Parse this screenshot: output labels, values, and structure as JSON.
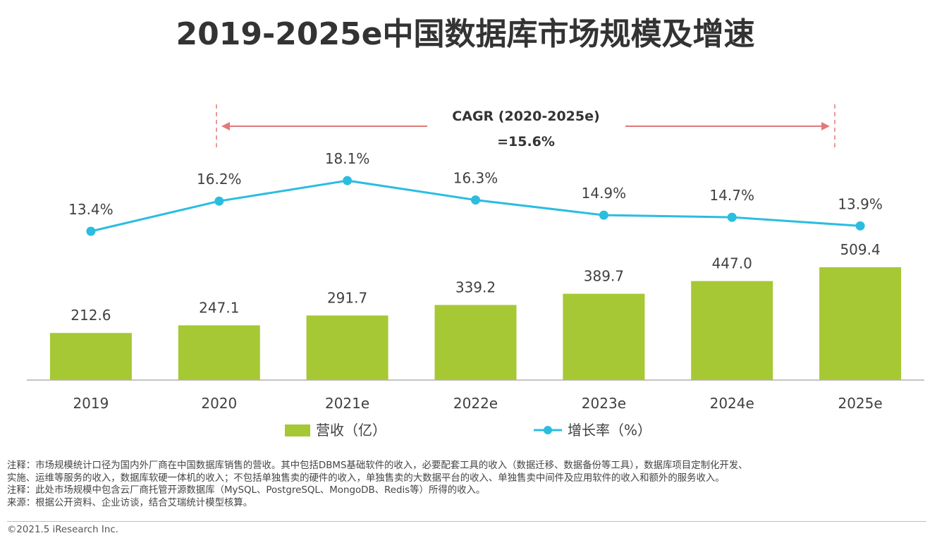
{
  "chart_data": {
    "type": "bar",
    "title": "2019-2025e中国数据库市场规模及增速",
    "categories": [
      "2019",
      "2020",
      "2021e",
      "2022e",
      "2023e",
      "2024e",
      "2025e"
    ],
    "series": [
      {
        "name": "营收（亿）",
        "type": "bar",
        "color": "#a6c834",
        "values": [
          212.6,
          247.1,
          291.7,
          339.2,
          389.7,
          447.0,
          509.4
        ],
        "labels": [
          "212.6",
          "247.1",
          "291.7",
          "339.2",
          "389.7",
          "447.0",
          "509.4"
        ]
      },
      {
        "name": "增长率（%）",
        "type": "line",
        "color": "#2bbde0",
        "values": [
          13.4,
          16.2,
          18.1,
          16.3,
          14.9,
          14.7,
          13.9
        ],
        "labels": [
          "13.4%",
          "16.2%",
          "18.1%",
          "16.3%",
          "14.9%",
          "14.7%",
          "13.9%"
        ]
      }
    ],
    "annotation": {
      "line1": "CAGR (2020-2025e)",
      "line2": "=15.6%",
      "from": "2020",
      "to": "2025e",
      "color": "#e07a7a"
    },
    "legend_position": "bottom",
    "grid": false
  },
  "notes": [
    "注释：市场规模统计口径为国内外厂商在中国数据库销售的营收。其中包括DBMS基础软件的收入，必要配套工具的收入（数据迁移、数据备份等工具），数据库项目定制化开发、",
    "实施、运维等服务的收入，数据库软硬一体机的收入；不包括单独售卖的硬件的收入，单独售卖的大数据平台的收入、单独售卖中间件及应用软件的收入和额外的服务收入。",
    "注释：此处市场规模中包含云厂商托管开源数据库（MySQL、PostgreSQL、MongoDB、Redis等）所得的收入。",
    "来源：根据公开资料、企业访谈，结合艾瑞统计模型核算。"
  ],
  "footer": {
    "copyright": "©2021.5 iResearch Inc."
  }
}
